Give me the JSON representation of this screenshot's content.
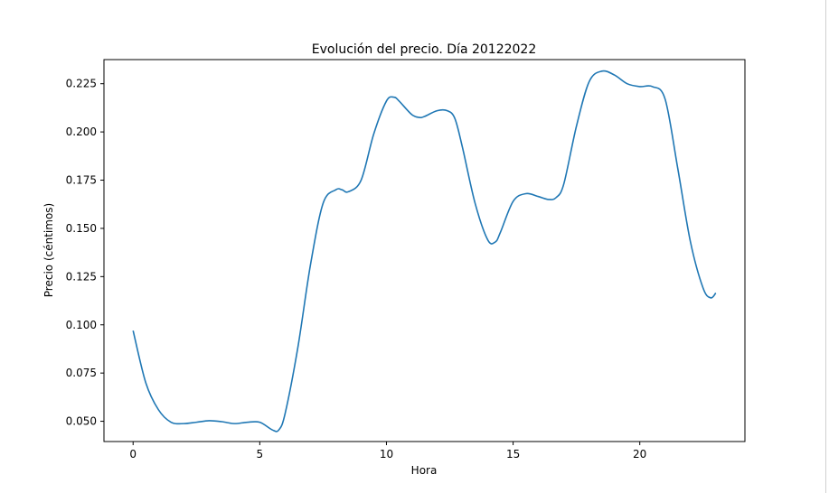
{
  "chart_data": {
    "type": "line",
    "title": "Evolución del precio. Día 20122022",
    "xlabel": "Hora",
    "ylabel": "Precio (céntimos)",
    "xlim": [
      -1.15,
      24.15
    ],
    "ylim": [
      0.0395,
      0.2375
    ],
    "xticks": [
      0,
      5,
      10,
      15,
      20
    ],
    "yticks": [
      0.05,
      0.075,
      0.1,
      0.125,
      0.15,
      0.175,
      0.2,
      0.225
    ],
    "ytick_labels": [
      "0.050",
      "0.075",
      "0.100",
      "0.125",
      "0.150",
      "0.175",
      "0.200",
      "0.225"
    ],
    "grid": false,
    "line_color": "#1f77b4",
    "series": [
      {
        "x": [
          0,
          0.5,
          1,
          1.5,
          2,
          2.5,
          3,
          3.5,
          4,
          4.5,
          5,
          5.5,
          5.75,
          6,
          6.5,
          7,
          7.5,
          8,
          8.25,
          8.5,
          9,
          9.5,
          10,
          10.3,
          10.5,
          11,
          11.3,
          11.5,
          12,
          12.4,
          12.7,
          13,
          13.5,
          14,
          14.3,
          14.5,
          15,
          15.5,
          16,
          16.4,
          16.7,
          17,
          17.5,
          18,
          18.5,
          19,
          19.5,
          20,
          20.5,
          21,
          21.5,
          22,
          22.5,
          22.8,
          23
        ],
        "y": [
          0.097,
          0.07,
          0.056,
          0.0495,
          0.0488,
          0.0495,
          0.0503,
          0.0498,
          0.0488,
          0.0495,
          0.0495,
          0.0455,
          0.0455,
          0.054,
          0.088,
          0.131,
          0.163,
          0.17,
          0.17,
          0.169,
          0.175,
          0.199,
          0.216,
          0.218,
          0.216,
          0.209,
          0.2075,
          0.208,
          0.211,
          0.211,
          0.207,
          0.192,
          0.163,
          0.144,
          0.143,
          0.148,
          0.164,
          0.168,
          0.1665,
          0.165,
          0.166,
          0.173,
          0.203,
          0.226,
          0.2315,
          0.2295,
          0.225,
          0.2235,
          0.2235,
          0.217,
          0.181,
          0.143,
          0.119,
          0.114,
          0.1165
        ]
      }
    ]
  }
}
